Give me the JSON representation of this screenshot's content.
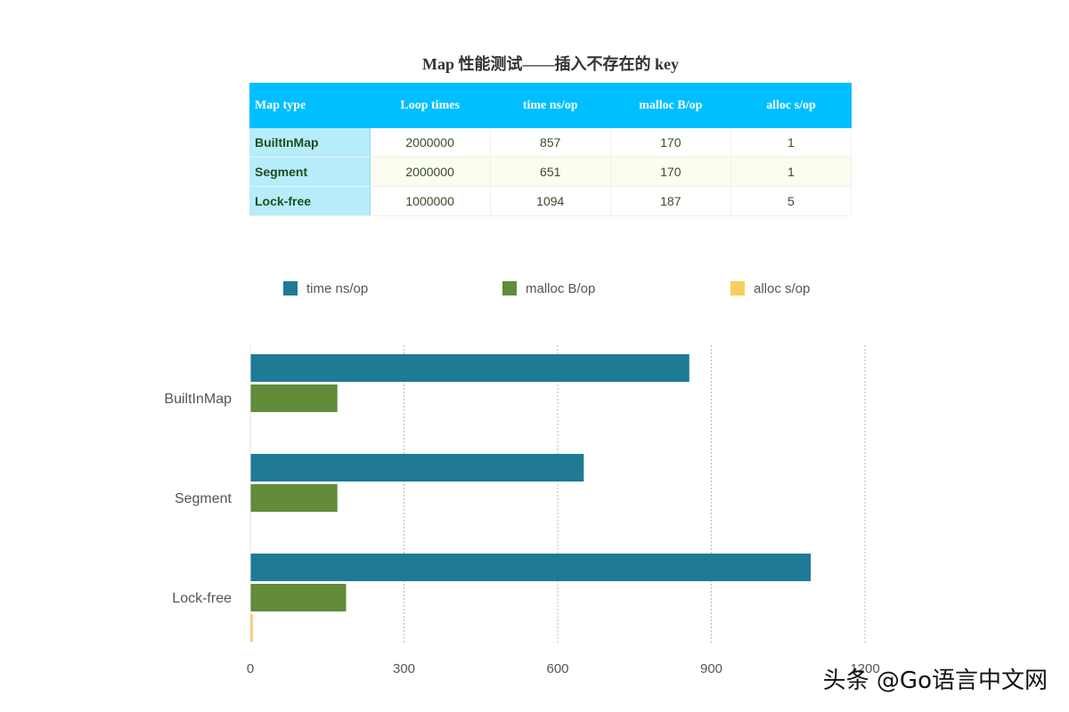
{
  "table": {
    "title": "Map 性能测试——插入不存在的 key",
    "headers": [
      "Map type",
      "Loop times",
      "time ns/op",
      "malloc B/op",
      "alloc s/op"
    ],
    "rows": [
      [
        "BuiltInMap",
        "2000000",
        "857",
        "170",
        "1"
      ],
      [
        "Segment",
        "2000000",
        "651",
        "170",
        "1"
      ],
      [
        "Lock-free",
        "1000000",
        "1094",
        "187",
        "5"
      ]
    ]
  },
  "chart_data": {
    "type": "bar",
    "orientation": "horizontal",
    "categories": [
      "BuiltInMap",
      "Segment",
      "Lock-free"
    ],
    "series": [
      {
        "name": "time ns/op",
        "color": "#1f7a96",
        "values": [
          857,
          651,
          1094
        ]
      },
      {
        "name": "malloc B/op",
        "color": "#628b3a",
        "values": [
          170,
          170,
          187
        ]
      },
      {
        "name": "alloc s/op",
        "color": "#f9cc5e",
        "values": [
          1,
          1,
          5
        ]
      }
    ],
    "xlim": [
      0,
      1200
    ],
    "xticks": [
      "0",
      "300",
      "600",
      "900",
      "1200"
    ],
    "grid": true,
    "legend_position": "top"
  },
  "watermark": "头条 @Go语言中文网"
}
